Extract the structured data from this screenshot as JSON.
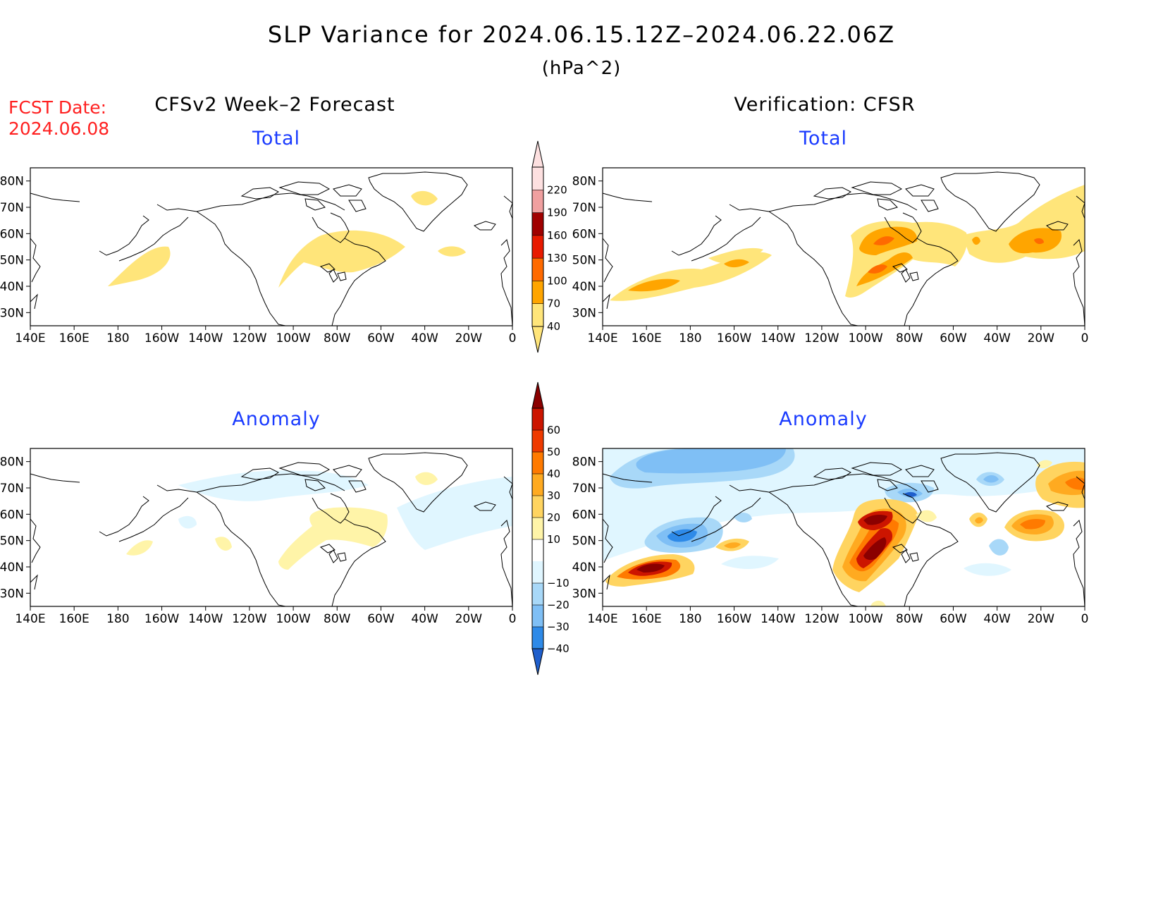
{
  "header": {
    "title": "SLP Variance for 2024.06.15.12Z–2024.06.22.06Z",
    "units": "(hPa^2)",
    "fcst_label": "FCST Date:",
    "fcst_date": "2024.06.08",
    "left_column": "CFSv2 Week–2 Forecast",
    "right_column": "Verification: CFSR"
  },
  "panels": {
    "forecast_total": {
      "title": "Total"
    },
    "verification_total": {
      "title": "Total"
    },
    "forecast_anomaly": {
      "title": "Anomaly"
    },
    "verification_anomaly": {
      "title": "Anomaly"
    }
  },
  "map_axes": {
    "lon_range": [
      140,
      360
    ],
    "lat_range": [
      25,
      85
    ],
    "lon_labels": [
      "140E",
      "160E",
      "180",
      "160W",
      "140W",
      "120W",
      "100W",
      "80W",
      "60W",
      "40W",
      "20W",
      "0"
    ],
    "lat_labels": [
      "30N",
      "40N",
      "50N",
      "60N",
      "70N",
      "80N"
    ]
  },
  "colorbars": {
    "total": {
      "labels": [
        "40",
        "70",
        "100",
        "130",
        "160",
        "190",
        "220"
      ],
      "colors": [
        "#ffe57a",
        "#ffa500",
        "#ff6a00",
        "#e81a00",
        "#a00000",
        "#f0a0a0",
        "#fde0e0"
      ]
    },
    "anomaly": {
      "labels": [
        "−40",
        "−30",
        "−20",
        "−10",
        "10",
        "20",
        "30",
        "40",
        "50",
        "60"
      ],
      "colors": [
        "#1f5fcc",
        "#2e8ae8",
        "#7fbff5",
        "#a8d8f8",
        "#e0f6ff",
        "#ffffff",
        "#fff4a8",
        "#ffd460",
        "#ffaa20",
        "#ff7a00",
        "#ee3a00",
        "#cc1500",
        "#8b0000"
      ]
    }
  }
}
